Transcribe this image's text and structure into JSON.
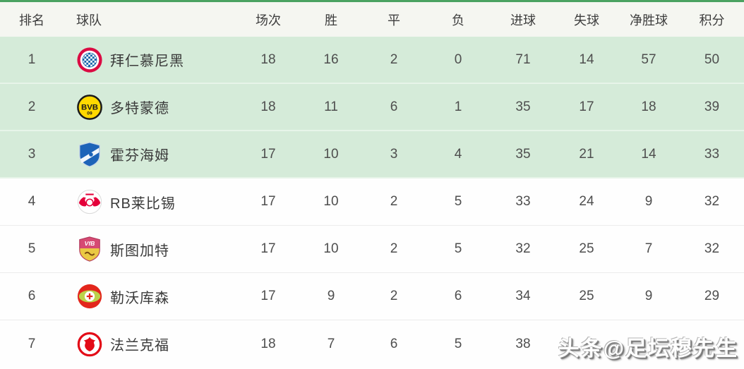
{
  "table": {
    "columns": [
      {
        "key": "rank",
        "label": "排名"
      },
      {
        "key": "team",
        "label": "球队"
      },
      {
        "key": "played",
        "label": "场次"
      },
      {
        "key": "won",
        "label": "胜"
      },
      {
        "key": "drawn",
        "label": "平"
      },
      {
        "key": "lost",
        "label": "负"
      },
      {
        "key": "goals_for",
        "label": "进球"
      },
      {
        "key": "goals_against",
        "label": "失球"
      },
      {
        "key": "goal_diff",
        "label": "净胜球"
      },
      {
        "key": "points",
        "label": "积分"
      }
    ],
    "rows": [
      {
        "rank": "1",
        "team": "拜仁慕尼黑",
        "logo": "bayern-munich",
        "played": "18",
        "won": "16",
        "drawn": "2",
        "lost": "0",
        "goals_for": "71",
        "goals_against": "14",
        "goal_diff": "57",
        "points": "50",
        "highlighted": true
      },
      {
        "rank": "2",
        "team": "多特蒙德",
        "logo": "dortmund",
        "played": "18",
        "won": "11",
        "drawn": "6",
        "lost": "1",
        "goals_for": "35",
        "goals_against": "17",
        "goal_diff": "18",
        "points": "39",
        "highlighted": true
      },
      {
        "rank": "3",
        "team": "霍芬海姆",
        "logo": "hoffenheim",
        "played": "17",
        "won": "10",
        "drawn": "3",
        "lost": "4",
        "goals_for": "35",
        "goals_against": "21",
        "goal_diff": "14",
        "points": "33",
        "highlighted": true
      },
      {
        "rank": "4",
        "team": "RB莱比锡",
        "logo": "rb-leipzig",
        "played": "17",
        "won": "10",
        "drawn": "2",
        "lost": "5",
        "goals_for": "33",
        "goals_against": "24",
        "goal_diff": "9",
        "points": "32",
        "highlighted": false
      },
      {
        "rank": "5",
        "team": "斯图加特",
        "logo": "stuttgart",
        "played": "17",
        "won": "10",
        "drawn": "2",
        "lost": "5",
        "goals_for": "32",
        "goals_against": "25",
        "goal_diff": "7",
        "points": "32",
        "highlighted": false
      },
      {
        "rank": "6",
        "team": "勒沃库森",
        "logo": "leverkusen",
        "played": "17",
        "won": "9",
        "drawn": "2",
        "lost": "6",
        "goals_for": "34",
        "goals_against": "25",
        "goal_diff": "9",
        "points": "29",
        "highlighted": false
      },
      {
        "rank": "7",
        "team": "法兰克福",
        "logo": "frankfurt",
        "played": "18",
        "won": "7",
        "drawn": "6",
        "lost": "5",
        "goals_for": "38",
        "goals_against": "",
        "goal_diff": "",
        "points": "",
        "highlighted": false
      }
    ]
  },
  "watermark": {
    "text": "头条@足坛穆先生"
  },
  "colors": {
    "top_accent": "#4aa261",
    "header_bg": "#f5f6f1",
    "highlight_row_bg": "#d5ebd9",
    "row_bg": "#fefefe",
    "text": "#4e4e4e"
  }
}
